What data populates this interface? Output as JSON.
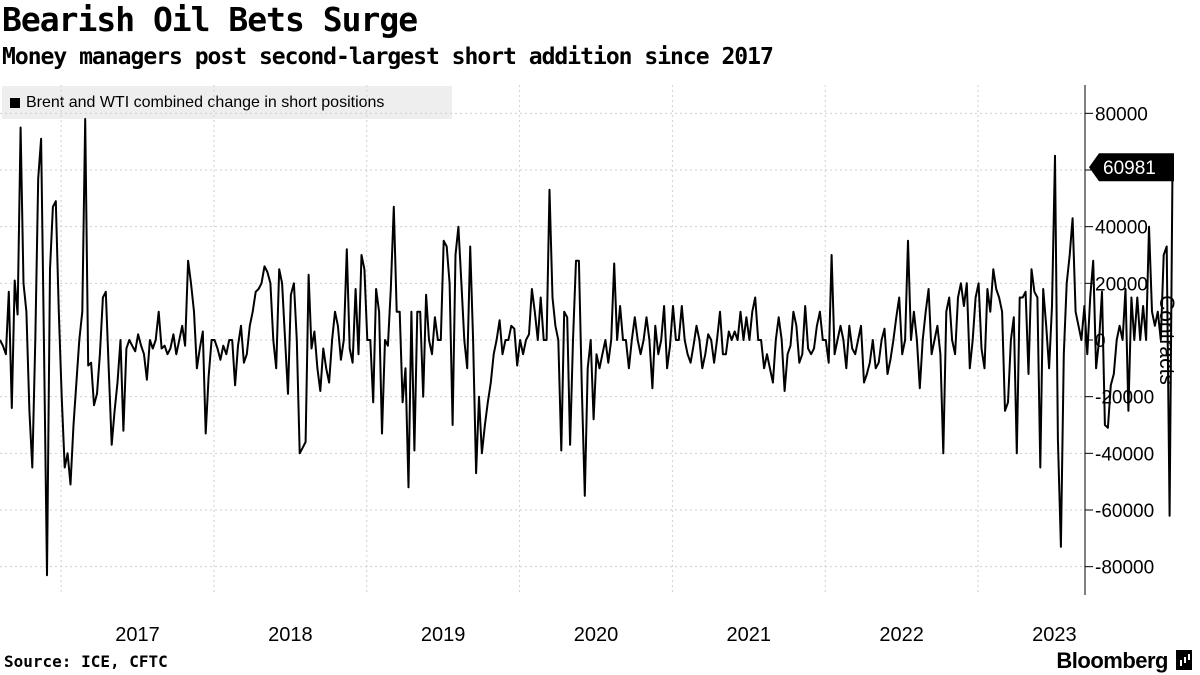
{
  "chart_data": {
    "type": "line",
    "title": "Bearish Oil Bets Surge",
    "subtitle": "Money managers post second-largest short addition since 2017",
    "legend": [
      "Brent and WTI combined change in short positions"
    ],
    "ylabel": "Contracts",
    "source": "Source: ICE, CFTC",
    "brand": "Bloomberg",
    "x_ticks": [
      "2017",
      "2018",
      "2019",
      "2020",
      "2021",
      "2022",
      "2023"
    ],
    "y_ticks": [
      "80000",
      "60000",
      "40000",
      "20000",
      "0",
      "-20000",
      "-40000",
      "-60000",
      "-80000"
    ],
    "y_tick_values": [
      80000,
      60000,
      40000,
      20000,
      0,
      -20000,
      -40000,
      -60000,
      -80000
    ],
    "ylim": [
      -90000,
      90000
    ],
    "x_start": 2016.6,
    "x_end": 2023.7,
    "last_value_label": "60981",
    "series": [
      {
        "name": "Brent and WTI combined change in short positions",
        "start": 2016.6,
        "step_years": 0.01923,
        "values": [
          0,
          -2000,
          -5000,
          17000,
          -24000,
          21000,
          9000,
          75000,
          20000,
          10000,
          -25000,
          -45000,
          0,
          57000,
          71000,
          -5000,
          -83000,
          25000,
          47000,
          49000,
          10000,
          -20000,
          -45000,
          -40000,
          -51000,
          -30000,
          -15000,
          0,
          10000,
          78000,
          -9000,
          -8000,
          -23000,
          -19000,
          -5000,
          15000,
          17000,
          -10000,
          -37000,
          -25000,
          -15000,
          0,
          -32000,
          -3000,
          0,
          -2000,
          -4000,
          2000,
          -2000,
          -5000,
          -14000,
          0,
          -3000,
          0,
          10000,
          -3000,
          -2000,
          -5000,
          -3000,
          2000,
          -5000,
          0,
          5000,
          -2000,
          28000,
          20000,
          10000,
          -10000,
          -3000,
          3000,
          -33000,
          -13000,
          0,
          0,
          -3000,
          -7000,
          -2000,
          -5000,
          0,
          0,
          -16000,
          -2000,
          5000,
          -8000,
          -5000,
          5000,
          10000,
          17000,
          18000,
          20000,
          26000,
          24000,
          20000,
          0,
          -10000,
          25000,
          20000,
          0,
          -19000,
          16000,
          20000,
          0,
          -40000,
          -38000,
          -36000,
          23000,
          -3000,
          3000,
          -10000,
          -18000,
          -3000,
          -10000,
          -15000,
          0,
          10000,
          5000,
          -7000,
          0,
          32000,
          -3000,
          -8000,
          18000,
          -5000,
          30000,
          25000,
          0,
          0,
          -22000,
          18000,
          10000,
          -33000,
          0,
          -2000,
          18000,
          47000,
          10000,
          10000,
          -22000,
          -10000,
          -52000,
          10000,
          -39000,
          10000,
          10000,
          -20000,
          16000,
          0,
          -5000,
          8000,
          0,
          0,
          35000,
          33000,
          20000,
          -30000,
          30000,
          40000,
          20000,
          0,
          -10000,
          33000,
          0,
          -47000,
          -20000,
          -40000,
          -30000,
          -22000,
          -15000,
          -5000,
          0,
          7000,
          -5000,
          0,
          0,
          5000,
          4000,
          -9000,
          0,
          -5000,
          0,
          2000,
          18000,
          10000,
          0,
          15000,
          0,
          0,
          53000,
          15000,
          5000,
          0,
          -39000,
          10000,
          8000,
          -37000,
          0,
          28000,
          28000,
          -18000,
          -55000,
          -10000,
          0,
          -28000,
          -5000,
          -10000,
          -5000,
          0,
          -8000,
          0,
          27000,
          0,
          12000,
          0,
          0,
          -10000,
          0,
          8000,
          0,
          -5000,
          0,
          8000,
          0,
          -17000,
          5000,
          -5000,
          0,
          12000,
          -10000,
          -2000,
          12000,
          0,
          0,
          12000,
          0,
          -5000,
          -8000,
          -2000,
          5000,
          0,
          -10000,
          -5000,
          2000,
          0,
          -8000,
          0,
          10000,
          -5000,
          -5000,
          3000,
          0,
          3000,
          0,
          10000,
          0,
          8000,
          0,
          10000,
          15000,
          0,
          0,
          -10000,
          -5000,
          -10000,
          -15000,
          0,
          8000,
          0,
          -18000,
          -5000,
          -2000,
          10000,
          5000,
          -8000,
          -5000,
          12000,
          -3000,
          -5000,
          -3000,
          5000,
          10000,
          0,
          0,
          -8000,
          30000,
          -5000,
          0,
          5000,
          0,
          -10000,
          5000,
          -3000,
          -5000,
          0,
          5000,
          -15000,
          -12000,
          -8000,
          0,
          -10000,
          -8000,
          0,
          4000,
          -12000,
          -7000,
          0,
          8000,
          15000,
          -5000,
          0,
          35000,
          0,
          10000,
          0,
          -17000,
          0,
          10000,
          18000,
          -5000,
          0,
          5000,
          -5000,
          -40000,
          10000,
          15000,
          0,
          -5000,
          15000,
          20000,
          12000,
          20000,
          -10000,
          0,
          15000,
          20000,
          -3000,
          -10000,
          18000,
          10000,
          25000,
          18000,
          15000,
          10000,
          -25000,
          -22000,
          0,
          8000,
          -40000,
          15000,
          15000,
          17000,
          -12000,
          25000,
          17000,
          15000,
          -45000,
          18000,
          5000,
          -10000,
          12000,
          65000,
          -35000,
          -73000,
          -5000,
          20000,
          30000,
          43000,
          10000,
          5000,
          0,
          12000,
          -5000,
          15000,
          28000,
          -10000,
          0,
          17000,
          -30000,
          -31000,
          -16000,
          -12000,
          0,
          5000,
          0,
          18000,
          -25000,
          15000,
          0,
          15000,
          0,
          12000,
          0,
          40000,
          10000,
          5000,
          10000,
          0,
          30000,
          33000,
          -62000,
          60981
        ]
      }
    ]
  }
}
